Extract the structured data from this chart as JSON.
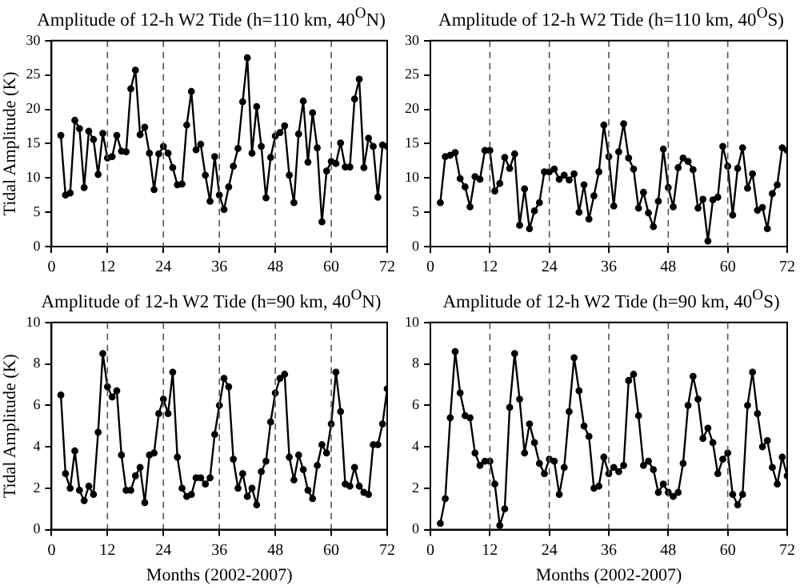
{
  "chart_data": [
    {
      "type": "line",
      "title": "Amplitude of 12-h W2 Tide (h=110 km, 40$^{O}$N)",
      "ylabel": "Tidal Amplitude (K)",
      "x": [
        2,
        3,
        4,
        5,
        6,
        7,
        8,
        9,
        10,
        11,
        12,
        13,
        14,
        15,
        16,
        17,
        18,
        19,
        20,
        21,
        22,
        23,
        24,
        25,
        26,
        27,
        28,
        29,
        30,
        31,
        32,
        33,
        34,
        35,
        36,
        37,
        38,
        39,
        40,
        41,
        42,
        43,
        44,
        45,
        46,
        47,
        48,
        49,
        50,
        51,
        52,
        53,
        54,
        55,
        56,
        57,
        58,
        59,
        60,
        61,
        62,
        63,
        64,
        65,
        66,
        67,
        68,
        69,
        70,
        71,
        72
      ],
      "marker": "circle",
      "line_style": "solid",
      "grid": false,
      "legend": false,
      "xlim": [
        0,
        72
      ],
      "xticks": [
        0,
        12,
        24,
        36,
        48,
        60,
        72
      ],
      "ylim": [
        0,
        30
      ],
      "yticks": [
        0,
        5,
        10,
        15,
        20,
        25,
        30
      ],
      "series": [
        {
          "color": "#000000",
          "values": [
            16.2,
            7.5,
            7.8,
            18.4,
            17.2,
            8.6,
            16.8,
            15.6,
            10.5,
            16.5,
            12.9,
            13.1,
            16.2,
            13.9,
            13.8,
            23.0,
            25.7,
            16.3,
            17.4,
            13.6,
            8.3,
            13.5,
            14.6,
            13.6,
            11.5,
            9.0,
            9.1,
            17.7,
            22.6,
            14.1,
            14.9,
            10.4,
            6.6,
            13.1,
            7.5,
            5.4,
            8.7,
            11.7,
            14.3,
            21.1,
            27.5,
            13.6,
            20.4,
            14.6,
            7.1,
            13.0,
            16.1,
            16.6,
            17.6,
            10.4,
            6.4,
            16.4,
            21.2,
            12.3,
            19.5,
            14.4,
            3.6,
            11.0,
            12.4,
            12.1,
            15.1,
            11.6,
            11.6,
            21.5,
            24.4,
            11.5,
            15.8,
            14.6,
            7.2,
            14.8,
            14.6
          ]
        }
      ],
      "ref_lines": [
        {
          "axis": "x",
          "value": 12,
          "line_style": "dashed"
        },
        {
          "axis": "x",
          "value": 24,
          "line_style": "dashed"
        },
        {
          "axis": "x",
          "value": 36,
          "line_style": "dashed"
        },
        {
          "axis": "x",
          "value": 48,
          "line_style": "dashed"
        },
        {
          "axis": "x",
          "value": 60,
          "line_style": "dashed"
        }
      ]
    },
    {
      "type": "line",
      "title": "Amplitude of 12-h W2 Tide (h=110 km, 40$^{O}$S)",
      "x": [
        2,
        3,
        4,
        5,
        6,
        7,
        8,
        9,
        10,
        11,
        12,
        13,
        14,
        15,
        16,
        17,
        18,
        19,
        20,
        21,
        22,
        23,
        24,
        25,
        26,
        27,
        28,
        29,
        30,
        31,
        32,
        33,
        34,
        35,
        36,
        37,
        38,
        39,
        40,
        41,
        42,
        43,
        44,
        45,
        46,
        47,
        48,
        49,
        50,
        51,
        52,
        53,
        54,
        55,
        56,
        57,
        58,
        59,
        60,
        61,
        62,
        63,
        64,
        65,
        66,
        67,
        68,
        69,
        70,
        71,
        72
      ],
      "marker": "circle",
      "line_style": "solid",
      "grid": false,
      "legend": false,
      "xlim": [
        0,
        72
      ],
      "xticks": [
        0,
        12,
        24,
        36,
        48,
        60,
        72
      ],
      "ylim": [
        0,
        30
      ],
      "yticks": [
        0,
        5,
        10,
        15,
        20,
        25,
        30
      ],
      "series": [
        {
          "color": "#000000",
          "values": [
            6.4,
            13.1,
            13.3,
            13.7,
            9.9,
            8.7,
            5.8,
            10.2,
            9.8,
            14.0,
            14.0,
            8.1,
            9.2,
            13.0,
            11.4,
            13.5,
            3.1,
            8.4,
            2.6,
            5.2,
            6.4,
            10.9,
            10.9,
            11.3,
            9.8,
            10.4,
            9.7,
            10.6,
            5.0,
            9.0,
            4.0,
            7.4,
            10.9,
            17.7,
            13.1,
            5.9,
            13.8,
            17.9,
            12.9,
            11.3,
            5.6,
            7.9,
            4.9,
            2.9,
            6.6,
            14.2,
            8.6,
            5.8,
            11.5,
            12.9,
            12.4,
            11.2,
            5.6,
            6.9,
            0.8,
            6.8,
            7.2,
            14.6,
            11.7,
            4.6,
            11.4,
            14.4,
            8.5,
            10.6,
            5.3,
            5.7,
            2.6,
            7.7,
            9.0,
            14.4,
            14.0
          ]
        }
      ],
      "ref_lines": [
        {
          "axis": "x",
          "value": 12,
          "line_style": "dashed"
        },
        {
          "axis": "x",
          "value": 24,
          "line_style": "dashed"
        },
        {
          "axis": "x",
          "value": 36,
          "line_style": "dashed"
        },
        {
          "axis": "x",
          "value": 48,
          "line_style": "dashed"
        },
        {
          "axis": "x",
          "value": 60,
          "line_style": "dashed"
        }
      ]
    },
    {
      "type": "line",
      "title": "Amplitude of 12-h W2 Tide (h=90 km, 40$^{O}$N)",
      "ylabel": "Tidal Amplitude (K)",
      "xlabel": "Months (2002-2007)",
      "x": [
        2,
        3,
        4,
        5,
        6,
        7,
        8,
        9,
        10,
        11,
        12,
        13,
        14,
        15,
        16,
        17,
        18,
        19,
        20,
        21,
        22,
        23,
        24,
        25,
        26,
        27,
        28,
        29,
        30,
        31,
        32,
        33,
        34,
        35,
        36,
        37,
        38,
        39,
        40,
        41,
        42,
        43,
        44,
        45,
        46,
        47,
        48,
        49,
        50,
        51,
        52,
        53,
        54,
        55,
        56,
        57,
        58,
        59,
        60,
        61,
        62,
        63,
        64,
        65,
        66,
        67,
        68,
        69,
        70,
        71,
        72
      ],
      "marker": "circle",
      "line_style": "solid",
      "grid": false,
      "legend": false,
      "xlim": [
        0,
        72
      ],
      "xticks": [
        0,
        12,
        24,
        36,
        48,
        60,
        72
      ],
      "ylim": [
        0,
        10
      ],
      "yticks": [
        0,
        2,
        4,
        6,
        8,
        10
      ],
      "series": [
        {
          "color": "#000000",
          "values": [
            6.5,
            2.7,
            2.0,
            3.8,
            1.9,
            1.4,
            2.1,
            1.7,
            4.7,
            8.5,
            6.9,
            6.4,
            6.7,
            3.6,
            1.9,
            1.9,
            2.6,
            3.0,
            1.3,
            3.6,
            3.7,
            5.6,
            6.3,
            5.6,
            7.6,
            3.5,
            2.0,
            1.6,
            1.7,
            2.5,
            2.5,
            2.2,
            2.5,
            4.6,
            6.0,
            7.3,
            6.9,
            3.4,
            2.0,
            2.7,
            1.6,
            2.0,
            1.2,
            2.8,
            3.3,
            5.2,
            6.6,
            7.3,
            7.5,
            3.5,
            2.4,
            3.6,
            2.9,
            1.9,
            1.5,
            3.1,
            4.1,
            3.7,
            5.1,
            7.6,
            5.7,
            2.2,
            2.1,
            3.0,
            2.1,
            1.8,
            1.7,
            4.1,
            4.1,
            5.1,
            6.8
          ]
        }
      ],
      "ref_lines": [
        {
          "axis": "x",
          "value": 12,
          "line_style": "dashed"
        },
        {
          "axis": "x",
          "value": 24,
          "line_style": "dashed"
        },
        {
          "axis": "x",
          "value": 36,
          "line_style": "dashed"
        },
        {
          "axis": "x",
          "value": 48,
          "line_style": "dashed"
        },
        {
          "axis": "x",
          "value": 60,
          "line_style": "dashed"
        }
      ]
    },
    {
      "type": "line",
      "title": "Amplitude of 12-h W2 Tide (h=90 km, 40$^{O}$S)",
      "xlabel": "Months (2002-2007)",
      "x": [
        2,
        3,
        4,
        5,
        6,
        7,
        8,
        9,
        10,
        11,
        12,
        13,
        14,
        15,
        16,
        17,
        18,
        19,
        20,
        21,
        22,
        23,
        24,
        25,
        26,
        27,
        28,
        29,
        30,
        31,
        32,
        33,
        34,
        35,
        36,
        37,
        38,
        39,
        40,
        41,
        42,
        43,
        44,
        45,
        46,
        47,
        48,
        49,
        50,
        51,
        52,
        53,
        54,
        55,
        56,
        57,
        58,
        59,
        60,
        61,
        62,
        63,
        64,
        65,
        66,
        67,
        68,
        69,
        70,
        71,
        72
      ],
      "marker": "circle",
      "line_style": "solid",
      "grid": false,
      "legend": false,
      "xlim": [
        0,
        72
      ],
      "xticks": [
        0,
        12,
        24,
        36,
        48,
        60,
        72
      ],
      "ylim": [
        0,
        10
      ],
      "yticks": [
        0,
        2,
        4,
        6,
        8,
        10
      ],
      "series": [
        {
          "color": "#000000",
          "values": [
            0.3,
            1.5,
            5.4,
            8.6,
            6.6,
            5.5,
            5.4,
            3.7,
            3.1,
            3.3,
            3.3,
            2.2,
            0.2,
            1.0,
            5.9,
            8.5,
            6.3,
            3.7,
            5.1,
            4.2,
            3.2,
            2.7,
            3.4,
            3.3,
            1.7,
            3.0,
            5.7,
            8.3,
            6.7,
            5.0,
            4.5,
            2.0,
            2.1,
            3.5,
            2.7,
            3.0,
            2.8,
            3.1,
            7.2,
            7.5,
            5.5,
            3.1,
            3.3,
            2.9,
            1.8,
            2.2,
            1.8,
            1.6,
            1.8,
            3.2,
            6.0,
            7.4,
            6.3,
            4.4,
            4.9,
            4.2,
            2.7,
            3.4,
            3.7,
            1.7,
            1.2,
            1.7,
            6.0,
            7.6,
            5.6,
            4.0,
            4.3,
            3.0,
            2.2,
            3.5,
            2.6
          ]
        }
      ],
      "ref_lines": [
        {
          "axis": "x",
          "value": 12,
          "line_style": "dashed"
        },
        {
          "axis": "x",
          "value": 24,
          "line_style": "dashed"
        },
        {
          "axis": "x",
          "value": 36,
          "line_style": "dashed"
        },
        {
          "axis": "x",
          "value": 48,
          "line_style": "dashed"
        },
        {
          "axis": "x",
          "value": 60,
          "line_style": "dashed"
        }
      ]
    }
  ]
}
